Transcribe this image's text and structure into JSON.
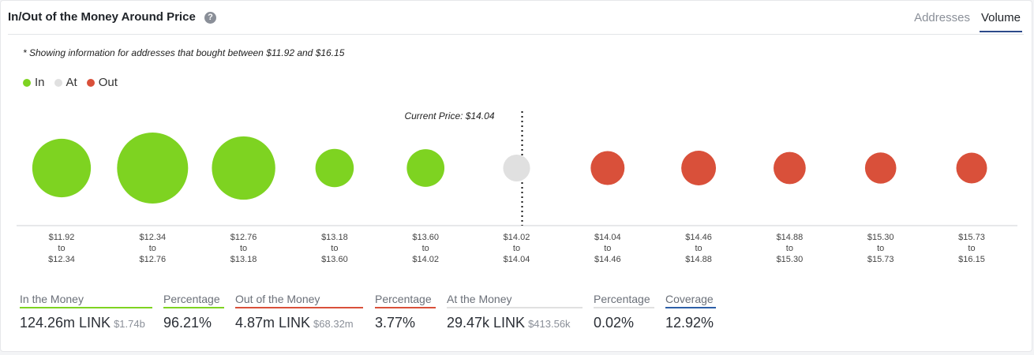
{
  "header": {
    "title": "In/Out of the Money Around Price",
    "tabs": [
      "Addresses",
      "Volume"
    ],
    "active_tab": "Volume"
  },
  "note": "* Showing information for addresses that bought between $11.92 and $16.15",
  "legend": [
    {
      "label": "In",
      "color": "#7ed321"
    },
    {
      "label": "At",
      "color": "#e0e0e0"
    },
    {
      "label": "Out",
      "color": "#d9503a"
    }
  ],
  "colors": {
    "in": "#7ed321",
    "at": "#e0e0e0",
    "out": "#d9503a"
  },
  "chart_data": {
    "type": "scatter",
    "annotation": "Current Price: $14.04",
    "categories": [
      {
        "from": "$11.92",
        "to": "$12.34",
        "status": "in",
        "volume_relative": 0.61
      },
      {
        "from": "$12.34",
        "to": "$12.76",
        "status": "in",
        "volume_relative": 1.0
      },
      {
        "from": "$12.76",
        "to": "$13.18",
        "status": "in",
        "volume_relative": 0.75
      },
      {
        "from": "$13.18",
        "to": "$13.60",
        "status": "in",
        "volume_relative": 0.18
      },
      {
        "from": "$13.60",
        "to": "$14.02",
        "status": "in",
        "volume_relative": 0.17
      },
      {
        "from": "$14.02",
        "to": "$14.04",
        "status": "at",
        "volume_relative": 0.05
      },
      {
        "from": "$14.04",
        "to": "$14.46",
        "status": "out",
        "volume_relative": 0.12
      },
      {
        "from": "$14.46",
        "to": "$14.88",
        "status": "out",
        "volume_relative": 0.13
      },
      {
        "from": "$14.88",
        "to": "$15.30",
        "status": "out",
        "volume_relative": 0.1
      },
      {
        "from": "$15.30",
        "to": "$15.73",
        "status": "out",
        "volume_relative": 0.09
      },
      {
        "from": "$15.73",
        "to": "$16.15",
        "status": "out",
        "volume_relative": 0.085
      }
    ],
    "to_word": "to"
  },
  "summary": {
    "in_money": {
      "label": "In the Money",
      "value": "124.26m LINK",
      "sub": "$1.74b"
    },
    "in_pct": {
      "label": "Percentage",
      "value": "96.21%"
    },
    "out_money": {
      "label": "Out of the Money",
      "value": "4.87m LINK",
      "sub": "$68.32m"
    },
    "out_pct": {
      "label": "Percentage",
      "value": "3.77%"
    },
    "at_money": {
      "label": "At the Money",
      "value": "29.47k LINK",
      "sub": "$413.56k"
    },
    "at_pct": {
      "label": "Percentage",
      "value": "0.02%"
    },
    "coverage": {
      "label": "Coverage",
      "value": "12.92%"
    }
  }
}
